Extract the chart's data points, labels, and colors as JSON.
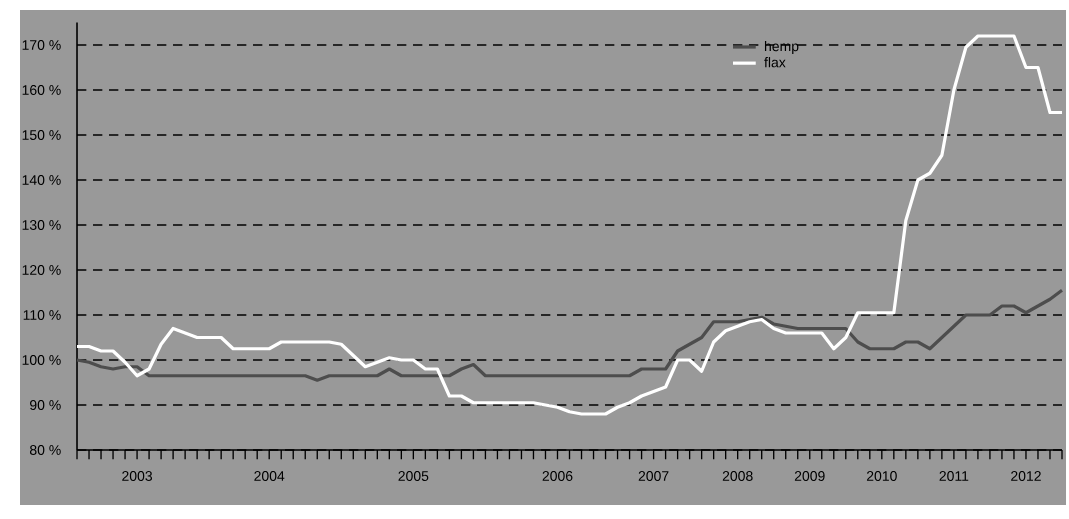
{
  "chart_data": {
    "type": "line",
    "categories": [
      null,
      null,
      null,
      null,
      null,
      "2003",
      null,
      null,
      null,
      null,
      null,
      null,
      null,
      null,
      null,
      null,
      "2004",
      null,
      null,
      null,
      null,
      null,
      null,
      null,
      null,
      null,
      null,
      null,
      "2005",
      null,
      null,
      null,
      null,
      null,
      null,
      null,
      null,
      null,
      null,
      null,
      "2006",
      null,
      null,
      null,
      null,
      null,
      null,
      null,
      "2007",
      null,
      null,
      null,
      null,
      null,
      null,
      "2008",
      null,
      null,
      null,
      null,
      null,
      "2009",
      null,
      null,
      null,
      null,
      null,
      "2010",
      null,
      null,
      null,
      null,
      null,
      "2011",
      null,
      null,
      null,
      null,
      null,
      "2012",
      null,
      null,
      null
    ],
    "ylim": [
      80,
      175
    ],
    "yticks": [
      {
        "value": 80,
        "label": "80 %"
      },
      {
        "value": 90,
        "label": "90 %"
      },
      {
        "value": 100,
        "label": "100 %"
      },
      {
        "value": 110,
        "label": "110 %"
      },
      {
        "value": 120,
        "label": "120 %"
      },
      {
        "value": 130,
        "label": "130 %"
      },
      {
        "value": 140,
        "label": "140 %"
      },
      {
        "value": 150,
        "label": "150 %"
      },
      {
        "value": 160,
        "label": "160 %"
      },
      {
        "value": 170,
        "label": "170 %"
      }
    ],
    "grid": "y",
    "legend": "top right",
    "line_style": "solid",
    "series": [
      {
        "name": "hemp",
        "color": "#4d4d4d",
        "values": [
          100,
          99.5,
          98.5,
          98,
          98.5,
          98.5,
          96.5,
          96.5,
          96.5,
          96.5,
          96.5,
          96.5,
          96.5,
          96.5,
          96.5,
          96.5,
          96.5,
          96.5,
          96.5,
          96.5,
          95.5,
          96.5,
          96.5,
          96.5,
          96.5,
          96.5,
          98,
          96.5,
          96.5,
          96.5,
          96.5,
          96.5,
          98,
          99,
          96.5,
          96.5,
          96.5,
          96.5,
          96.5,
          96.5,
          96.5,
          96.5,
          96.5,
          96.5,
          96.5,
          96.5,
          96.5,
          98,
          98,
          98,
          102,
          103.5,
          105,
          108.5,
          108.5,
          108.5,
          109,
          109.5,
          108,
          107.5,
          107,
          107,
          107,
          107,
          107,
          104,
          102.5,
          102.5,
          102.5,
          104,
          104,
          102.5,
          105,
          107.5,
          110,
          110,
          110,
          112,
          112,
          110.5,
          112,
          113.5,
          115.5
        ]
      },
      {
        "name": "flax",
        "color": "#ffffff",
        "values": [
          103,
          103,
          102,
          102,
          99.5,
          96.5,
          98,
          103.5,
          107,
          106,
          105,
          105,
          105,
          102.5,
          102.5,
          102.5,
          102.5,
          104,
          104,
          104,
          104,
          104,
          103.5,
          101,
          98.5,
          99.5,
          100.5,
          100,
          100,
          98,
          98,
          92,
          92,
          90.5,
          90.5,
          90.5,
          90.5,
          90.5,
          90.5,
          90,
          89.5,
          88.5,
          88,
          88,
          88,
          89.5,
          90.5,
          92,
          93,
          94,
          100,
          100,
          97.5,
          104,
          106.5,
          107.5,
          108.5,
          109,
          107,
          106,
          106,
          106,
          106,
          102.5,
          105,
          110.5,
          110.5,
          110.5,
          110.5,
          131,
          140,
          141.5,
          145.5,
          160,
          169.5,
          172,
          172,
          172,
          172,
          165,
          165,
          155,
          155
        ]
      }
    ]
  }
}
